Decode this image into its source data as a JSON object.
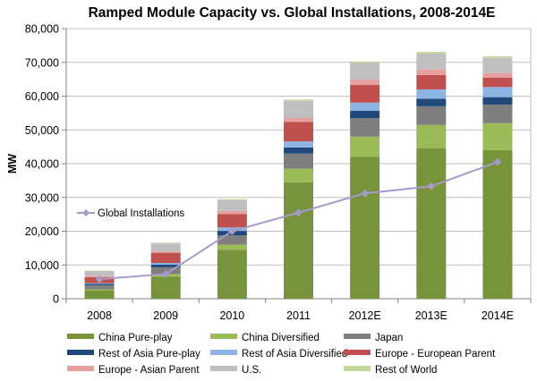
{
  "chart_data": {
    "type": "bar",
    "stacked": true,
    "title": "Ramped Module Capacity vs. Global Installations, 2008-2014E",
    "xlabel": "",
    "ylabel": "MW",
    "ylim": [
      0,
      80000
    ],
    "yticks": [
      0,
      10000,
      20000,
      30000,
      40000,
      50000,
      60000,
      70000,
      80000
    ],
    "ytick_labels": [
      "0",
      "10,000",
      "20,000",
      "30,000",
      "40,000",
      "50,000",
      "60,000",
      "70,000",
      "80,000"
    ],
    "categories": [
      "2008",
      "2009",
      "2010",
      "2011",
      "2012E",
      "2013E",
      "2014E"
    ],
    "grid": true,
    "legend_position": "bottom",
    "series": [
      {
        "name": "China Pure-play",
        "color": "#77933c",
        "values": [
          2500,
          6500,
          14500,
          34500,
          42000,
          44500,
          44000
        ]
      },
      {
        "name": "China Diversified",
        "color": "#9bbb59",
        "values": [
          300,
          800,
          1500,
          4000,
          6000,
          7000,
          8000
        ]
      },
      {
        "name": "Japan",
        "color": "#7f7f7f",
        "values": [
          1200,
          2000,
          2800,
          4500,
          5500,
          5500,
          5500
        ]
      },
      {
        "name": "Rest of Asia Pure-play",
        "color": "#1f497d",
        "values": [
          400,
          800,
          1300,
          1800,
          2200,
          2200,
          2200
        ]
      },
      {
        "name": "Rest of Asia Diversified",
        "color": "#8eb4e3",
        "values": [
          200,
          500,
          1000,
          1800,
          2400,
          2800,
          3000
        ]
      },
      {
        "name": "Europe - European Parent",
        "color": "#c0504d",
        "values": [
          1800,
          3000,
          4000,
          5800,
          5200,
          4300,
          2800
        ]
      },
      {
        "name": "Europe - Asian Parent",
        "color": "#e6a0a0",
        "values": [
          300,
          400,
          900,
          1200,
          1600,
          1600,
          1300
        ]
      },
      {
        "name": "U.S.",
        "color": "#bfbfbf",
        "values": [
          1500,
          2400,
          3200,
          5000,
          5000,
          4700,
          4500
        ]
      },
      {
        "name": "Rest of World",
        "color": "#c3d69b",
        "values": [
          100,
          200,
          300,
          400,
          400,
          500,
          500
        ]
      }
    ],
    "line_series": {
      "name": "Global Installations",
      "color": "#a59ac8",
      "values": [
        5800,
        7300,
        20000,
        25500,
        31200,
        33300,
        40500
      ]
    }
  }
}
